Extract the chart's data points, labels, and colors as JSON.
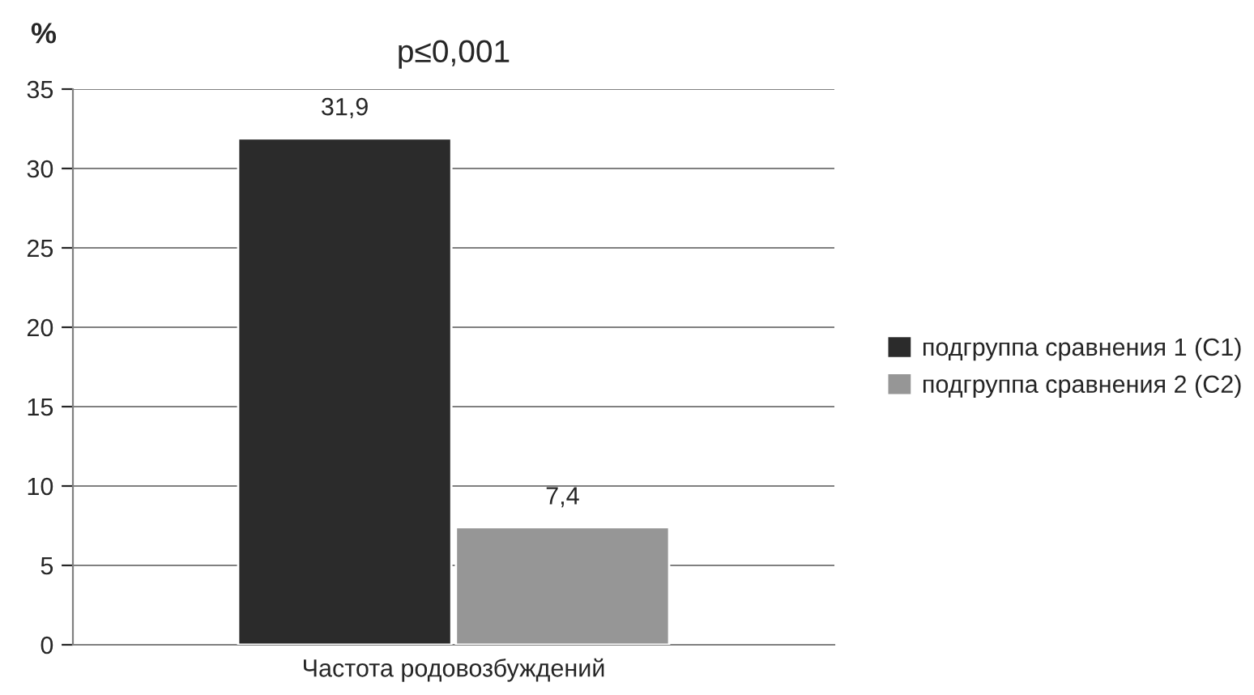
{
  "chart_data": {
    "type": "bar",
    "title": "p≤0,001",
    "ylabel": "%",
    "categories": [
      "Частота родовозбуждений"
    ],
    "series": [
      {
        "name": "подгруппа сравнения 1 (С1)",
        "color": "#2b2b2b",
        "values": [
          31.9
        ],
        "value_labels": [
          "31,9"
        ]
      },
      {
        "name": "подгруппа сравнения 2 (С2)",
        "color": "#969696",
        "values": [
          7.4
        ],
        "value_labels": [
          "7,4"
        ]
      }
    ],
    "ylim": [
      0,
      35
    ],
    "yticks": [
      0,
      5,
      10,
      15,
      20,
      25,
      30,
      35
    ],
    "grid": "y",
    "legend": "right"
  }
}
